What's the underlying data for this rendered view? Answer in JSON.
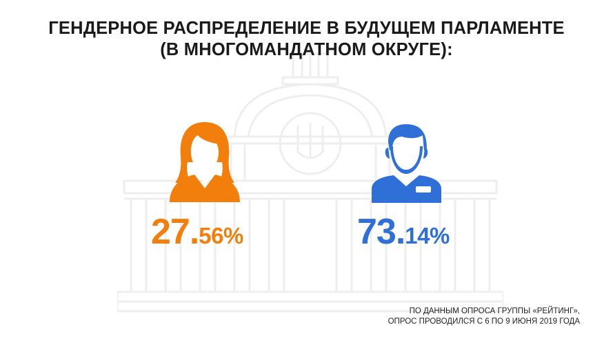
{
  "title": {
    "line1": "ГЕНДЕРНОЕ РАСПРЕДЕЛЕНИЕ В БУДУЩЕМ ПАРЛАМЕНТЕ",
    "line2": "(В МНОГОМАНДАТНОМ ОКРУГЕ):"
  },
  "chart_data": {
    "type": "pictograph",
    "categories": [
      "female",
      "male"
    ],
    "values": [
      27.56,
      73.14
    ],
    "labels": [
      {
        "int": "27.",
        "dec": "56%"
      },
      {
        "int": "73.",
        "dec": "14%"
      }
    ],
    "colors": [
      "#f27f0c",
      "#2e6fd8"
    ]
  },
  "icons": {
    "female": "female-icon",
    "male": "male-icon",
    "background": "parliament-building-icon"
  },
  "source": {
    "line1": "ПО ДАННЫМ ОПРОСА ГРУППЫ «РЕЙТИНГ»,",
    "line2": "ОПРОС ПРОВОДИЛСЯ С 6 ПО 9 ИЮНЯ 2019 ГОДА"
  }
}
